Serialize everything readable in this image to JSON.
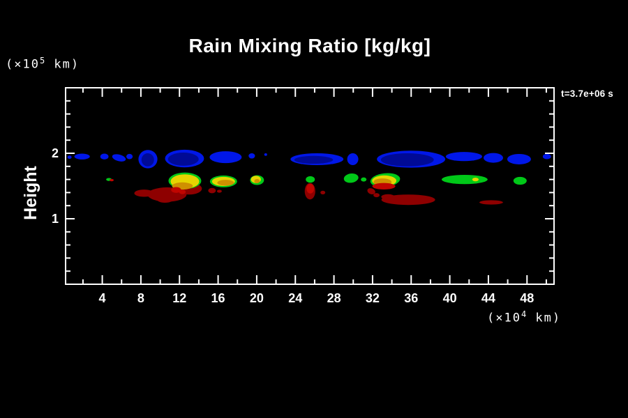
{
  "page": {
    "background": "#000000",
    "foreground": "#ffffff"
  },
  "chart_data": {
    "type": "filled_contour",
    "title": "Rain Mixing Ratio [kg/kg]",
    "time_annotation": "t=3.7e+06 s",
    "x_axis": {
      "label": "",
      "unit_prefix": "(×10",
      "unit_exponent": "4",
      "unit_suffix": " km)",
      "range": [
        0.2,
        50.8
      ],
      "major_ticks": [
        4,
        8,
        12,
        16,
        20,
        24,
        28,
        32,
        36,
        40,
        44,
        48
      ],
      "minor_tick_step": 2,
      "grid": false
    },
    "y_axis": {
      "label": "Height",
      "unit_prefix": "(×10",
      "unit_exponent": "5",
      "unit_suffix": " km)",
      "range": [
        0,
        3
      ],
      "major_ticks": [
        1,
        2
      ],
      "minor_tick_step": 0.2,
      "grid": false
    },
    "legend": null,
    "palette": {
      "b": "#0017e8",
      "bd": "#000a96",
      "g": "#00c818",
      "y": "#e6d400",
      "o": "#cf9000",
      "r": "#c00500",
      "rd": "#8e0000"
    },
    "blobs": [
      {
        "x": 0.61,
        "y": 1.94,
        "rx": 0.22,
        "ry": 0.025,
        "c": "b"
      },
      {
        "x": 1.91,
        "y": 1.95,
        "rx": 0.8,
        "ry": 0.045,
        "c": "b"
      },
      {
        "x": 4.22,
        "y": 1.95,
        "rx": 0.43,
        "ry": 0.045,
        "c": "b"
      },
      {
        "x": 5.73,
        "y": 1.93,
        "rx": 0.72,
        "ry": 0.05,
        "c": "b",
        "rot": 15
      },
      {
        "x": 6.82,
        "y": 1.95,
        "rx": 0.33,
        "ry": 0.04,
        "c": "b"
      },
      {
        "x": 8.73,
        "y": 1.91,
        "rx": 0.98,
        "ry": 0.14,
        "c": "b"
      },
      {
        "x": 8.71,
        "y": 1.9,
        "rx": 0.65,
        "ry": 0.1,
        "c": "bd"
      },
      {
        "x": 12.52,
        "y": 1.92,
        "rx": 2.02,
        "ry": 0.135,
        "c": "b"
      },
      {
        "x": 12.4,
        "y": 1.91,
        "rx": 1.59,
        "ry": 0.1,
        "c": "bd"
      },
      {
        "x": 16.78,
        "y": 1.94,
        "rx": 1.66,
        "ry": 0.09,
        "c": "b"
      },
      {
        "x": 19.49,
        "y": 1.96,
        "rx": 0.33,
        "ry": 0.04,
        "c": "b"
      },
      {
        "x": 20.93,
        "y": 1.98,
        "rx": 0.15,
        "ry": 0.02,
        "c": "b"
      },
      {
        "x": 26.24,
        "y": 1.91,
        "rx": 2.74,
        "ry": 0.09,
        "c": "b"
      },
      {
        "x": 25.9,
        "y": 1.9,
        "rx": 2.0,
        "ry": 0.06,
        "c": "bd"
      },
      {
        "x": 29.95,
        "y": 1.91,
        "rx": 0.58,
        "ry": 0.09,
        "c": "b"
      },
      {
        "x": 35.99,
        "y": 1.91,
        "rx": 3.54,
        "ry": 0.13,
        "c": "b"
      },
      {
        "x": 35.6,
        "y": 1.9,
        "rx": 2.74,
        "ry": 0.1,
        "c": "bd"
      },
      {
        "x": 41.47,
        "y": 1.95,
        "rx": 1.88,
        "ry": 0.07,
        "c": "b"
      },
      {
        "x": 44.51,
        "y": 1.93,
        "rx": 1.01,
        "ry": 0.075,
        "c": "b"
      },
      {
        "x": 47.18,
        "y": 1.91,
        "rx": 1.23,
        "ry": 0.08,
        "c": "b"
      },
      {
        "x": 50.06,
        "y": 1.95,
        "rx": 0.43,
        "ry": 0.04,
        "c": "b"
      },
      {
        "x": 4.69,
        "y": 1.6,
        "rx": 0.29,
        "ry": 0.022,
        "c": "g"
      },
      {
        "x": 4.97,
        "y": 1.59,
        "rx": 0.22,
        "ry": 0.018,
        "c": "r"
      },
      {
        "x": 8.33,
        "y": 1.39,
        "rx": 1.01,
        "ry": 0.055,
        "c": "rd"
      },
      {
        "x": 10.71,
        "y": 1.37,
        "rx": 2.02,
        "ry": 0.11,
        "c": "rd"
      },
      {
        "x": 13.02,
        "y": 1.46,
        "rx": 1.3,
        "ry": 0.09,
        "c": "rd"
      },
      {
        "x": 10.5,
        "y": 1.3,
        "rx": 0.87,
        "ry": 0.055,
        "c": "rd"
      },
      {
        "x": 12.56,
        "y": 1.58,
        "rx": 1.7,
        "ry": 0.125,
        "c": "g"
      },
      {
        "x": 12.56,
        "y": 1.57,
        "rx": 1.48,
        "ry": 0.108,
        "c": "y"
      },
      {
        "x": 12.3,
        "y": 1.5,
        "rx": 1.08,
        "ry": 0.055,
        "c": "o"
      },
      {
        "x": 11.65,
        "y": 1.44,
        "rx": 0.51,
        "ry": 0.045,
        "c": "r"
      },
      {
        "x": 12.3,
        "y": 1.41,
        "rx": 0.35,
        "ry": 0.035,
        "c": "r"
      },
      {
        "x": 15.37,
        "y": 1.43,
        "rx": 0.4,
        "ry": 0.04,
        "c": "rd"
      },
      {
        "x": 16.13,
        "y": 1.42,
        "rx": 0.25,
        "ry": 0.022,
        "c": "rd"
      },
      {
        "x": 16.56,
        "y": 1.57,
        "rx": 1.41,
        "ry": 0.09,
        "c": "g"
      },
      {
        "x": 16.56,
        "y": 1.57,
        "rx": 1.19,
        "ry": 0.07,
        "c": "y"
      },
      {
        "x": 16.78,
        "y": 1.55,
        "rx": 0.87,
        "ry": 0.045,
        "c": "o"
      },
      {
        "x": 20.03,
        "y": 1.59,
        "rx": 0.72,
        "ry": 0.075,
        "c": "g"
      },
      {
        "x": 19.92,
        "y": 1.6,
        "rx": 0.51,
        "ry": 0.055,
        "c": "y"
      },
      {
        "x": 20.03,
        "y": 1.575,
        "rx": 0.29,
        "ry": 0.032,
        "c": "o"
      },
      {
        "x": 25.55,
        "y": 1.6,
        "rx": 0.47,
        "ry": 0.05,
        "c": "g"
      },
      {
        "x": 25.52,
        "y": 1.42,
        "rx": 0.55,
        "ry": 0.125,
        "c": "rd"
      },
      {
        "x": 25.55,
        "y": 1.46,
        "rx": 0.4,
        "ry": 0.075,
        "c": "r"
      },
      {
        "x": 26.85,
        "y": 1.4,
        "rx": 0.25,
        "ry": 0.028,
        "c": "rd"
      },
      {
        "x": 29.78,
        "y": 1.62,
        "rx": 0.76,
        "ry": 0.07,
        "c": "g",
        "rot": -8
      },
      {
        "x": 31.08,
        "y": 1.6,
        "rx": 0.29,
        "ry": 0.032,
        "c": "g"
      },
      {
        "x": 31.87,
        "y": 1.42,
        "rx": 0.43,
        "ry": 0.045,
        "c": "rd",
        "rot": 20
      },
      {
        "x": 32.41,
        "y": 1.36,
        "rx": 0.32,
        "ry": 0.032,
        "c": "rd"
      },
      {
        "x": 33.31,
        "y": 1.59,
        "rx": 1.55,
        "ry": 0.105,
        "c": "g",
        "rot": -6
      },
      {
        "x": 33.21,
        "y": 1.58,
        "rx": 1.26,
        "ry": 0.082,
        "c": "y"
      },
      {
        "x": 33.03,
        "y": 1.56,
        "rx": 0.94,
        "ry": 0.055,
        "c": "o"
      },
      {
        "x": 33.17,
        "y": 1.497,
        "rx": 1.19,
        "ry": 0.05,
        "c": "r"
      },
      {
        "x": 33.6,
        "y": 1.335,
        "rx": 0.7,
        "ry": 0.04,
        "c": "rd"
      },
      {
        "x": 35.7,
        "y": 1.29,
        "rx": 2.78,
        "ry": 0.08,
        "c": "rd"
      },
      {
        "x": 41.54,
        "y": 1.6,
        "rx": 2.38,
        "ry": 0.07,
        "c": "g"
      },
      {
        "x": 42.66,
        "y": 1.6,
        "rx": 0.33,
        "ry": 0.028,
        "c": "y"
      },
      {
        "x": 44.29,
        "y": 1.25,
        "rx": 1.23,
        "ry": 0.033,
        "c": "rd"
      },
      {
        "x": 47.28,
        "y": 1.58,
        "rx": 0.69,
        "ry": 0.06,
        "c": "g"
      }
    ]
  }
}
